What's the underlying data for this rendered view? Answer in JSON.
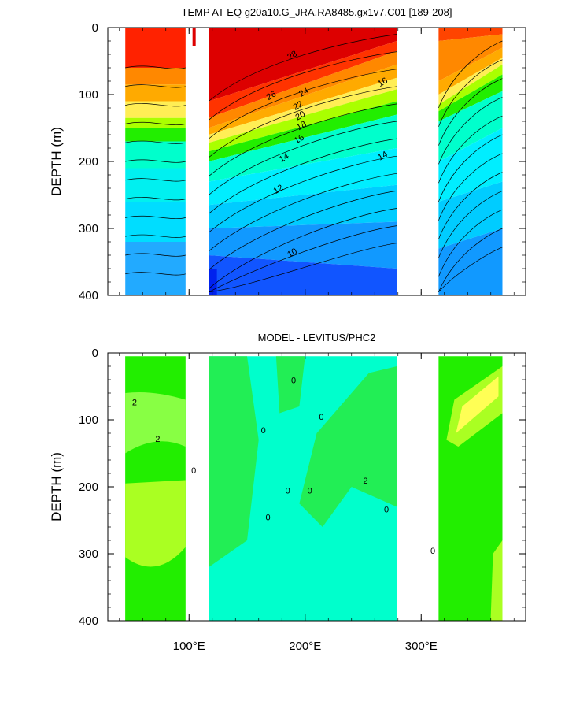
{
  "chart_data": [
    {
      "type": "contour",
      "title": "TEMP AT EQ g20a10.G_JRA.RA8485.gx1v7.C01 [189-208]",
      "xlabel": "",
      "ylabel": "DEPTH (m)",
      "xlim": [
        30,
        390
      ],
      "ylim": [
        0,
        400
      ],
      "y_inverted": true,
      "y_ticks": [
        0,
        100,
        200,
        300,
        400
      ],
      "y_tick_labels": [
        "0",
        "100",
        "200",
        "300",
        "400"
      ],
      "x_ticks": [
        100,
        200,
        300
      ],
      "x_tick_labels": [
        "",
        "",
        ""
      ],
      "contour_labels": [
        "28",
        "26",
        "24",
        "22",
        "20",
        "18",
        "16",
        "14",
        "12",
        "10",
        "16",
        "14"
      ],
      "land_gaps_lon": [
        [
          97,
          117
        ],
        [
          279,
          315
        ]
      ]
    },
    {
      "type": "contour",
      "title": "MODEL - LEVITUS/PHC2",
      "xlabel": "",
      "ylabel": "DEPTH (m)",
      "xlim": [
        30,
        390
      ],
      "ylim": [
        0,
        400
      ],
      "y_inverted": true,
      "y_ticks": [
        0,
        100,
        200,
        300,
        400
      ],
      "y_tick_labels": [
        "0",
        "100",
        "200",
        "300",
        "400"
      ],
      "x_ticks": [
        100,
        200,
        300
      ],
      "x_tick_labels": [
        "100°E",
        "200°E",
        "300°E"
      ],
      "contour_labels": [
        "2",
        "2",
        "0",
        "0",
        "0",
        "0",
        "0",
        "0",
        "0",
        "2",
        "0",
        "0"
      ],
      "land_gaps_lon": [
        [
          97,
          117
        ],
        [
          279,
          315
        ]
      ]
    }
  ]
}
